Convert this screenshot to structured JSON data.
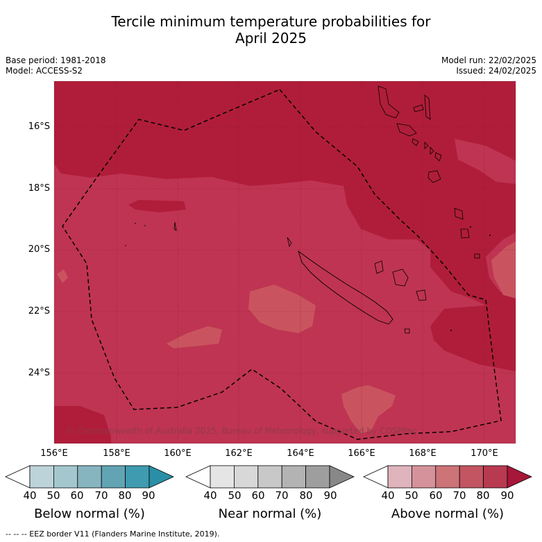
{
  "title": {
    "line1": "Tercile minimum temperature probabilities for",
    "line2": "April 2025"
  },
  "meta": {
    "base_period": "Base period: 1981-2018",
    "model": "Model: ACCESS-S2",
    "model_run": "Model run: 22/02/2025",
    "issued": "Issued: 24/02/2025"
  },
  "map": {
    "latitude_labels": [
      "16°S",
      "18°S",
      "20°S",
      "22°S",
      "24°S"
    ],
    "longitude_labels": [
      "156°E",
      "158°E",
      "160°E",
      "162°E",
      "164°E",
      "166°E",
      "168°E",
      "170°E"
    ],
    "copyright": "© Commonwealth of Australia 2025, Bureau of Meteorology, supported by COSPPac",
    "fill_colors": {
      "above_80_90": "#b01d3a",
      "above_70_80": "#bf3452",
      "above_60_70": "#c9545f"
    },
    "eez_line_color": "#000000"
  },
  "colorbars": [
    {
      "title": "Below normal (%)",
      "ticks": [
        "40",
        "50",
        "60",
        "70",
        "80",
        "90"
      ],
      "colors": [
        "#ffffff",
        "#bdd3da",
        "#a4c7ce",
        "#86b5c0",
        "#62a4b3",
        "#3f9bb0",
        "#2a8fa6"
      ]
    },
    {
      "title": "Near normal (%)",
      "ticks": [
        "40",
        "50",
        "60",
        "70",
        "80",
        "90"
      ],
      "colors": [
        "#ffffff",
        "#e5e5e5",
        "#d8d8d8",
        "#c8c8c8",
        "#b3b3b3",
        "#9e9e9e",
        "#888888"
      ]
    },
    {
      "title": "Above normal (%)",
      "ticks": [
        "40",
        "50",
        "60",
        "70",
        "80",
        "90"
      ],
      "colors": [
        "#ffffff",
        "#dfb4bc",
        "#d6929a",
        "#cc7478",
        "#c25561",
        "#b83a51",
        "#a6173a"
      ]
    }
  ],
  "legend_note": "--  --  -- EEZ border V11 (Flanders Marine Institute, 2019)."
}
